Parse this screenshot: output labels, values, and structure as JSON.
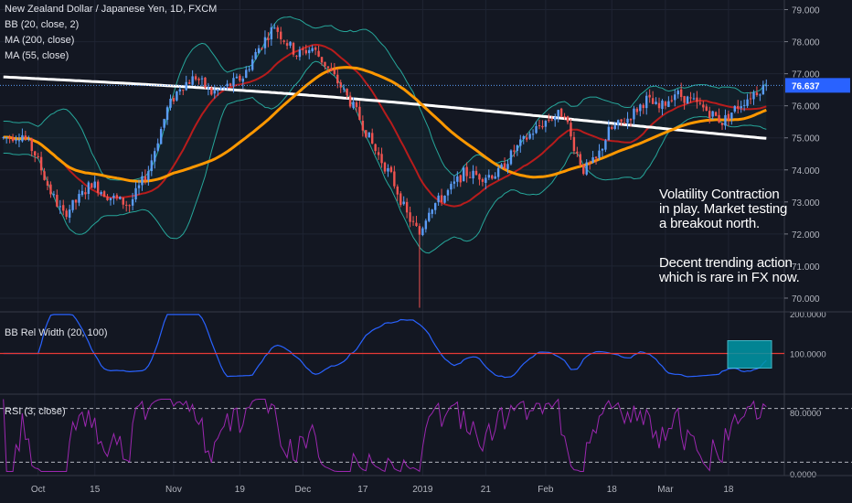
{
  "chart_data": [
    {
      "type": "candlestick",
      "title": "New Zealand Dollar / Japanese Yen, 1D, FXCM",
      "indicators": [
        "BB (20, close, 2)",
        "MA (200, close)",
        "MA (55, close)"
      ],
      "last_price": "76.637",
      "y_ticks": [
        "79.000",
        "78.000",
        "77.000",
        "76.000",
        "75.000",
        "74.000",
        "73.000",
        "72.000",
        "71.000",
        "70.000"
      ],
      "ylim": [
        69.6,
        79.3
      ],
      "x_ticks": [
        "Oct",
        "15",
        "Nov",
        "19",
        "Dec",
        "17",
        "2019",
        "21",
        "Feb",
        "18",
        "Mar",
        "18"
      ],
      "annotations": [
        [
          "Volatility Contraction",
          "in play. Market testing",
          "a breakout north."
        ],
        [
          "Decent trending action",
          "which is rare in FX now."
        ]
      ],
      "ohlc": [],
      "colors": {
        "up": "#5b9cf6",
        "down": "#ef5350",
        "ma200": "#ffffff",
        "ma55": "#ff9800",
        "bb_basis": "#b71c1c",
        "bb_band": "#26a69a"
      }
    },
    {
      "type": "line",
      "label": "BB Rel Width (20, 100)",
      "y_ticks": [
        "200.0000",
        "100.0000"
      ],
      "ylim": [
        0,
        200
      ],
      "reference_line": 100,
      "colors": {
        "line": "#2962ff",
        "reference": "#e53935",
        "highlight": "#0097a7"
      }
    },
    {
      "type": "line",
      "label": "RSI (3, close)",
      "y_ticks": [
        "80.0000",
        "0.0000"
      ],
      "ylim": [
        0,
        100
      ],
      "levels": [
        85,
        15
      ],
      "colors": {
        "line": "#9c27b0"
      }
    }
  ]
}
